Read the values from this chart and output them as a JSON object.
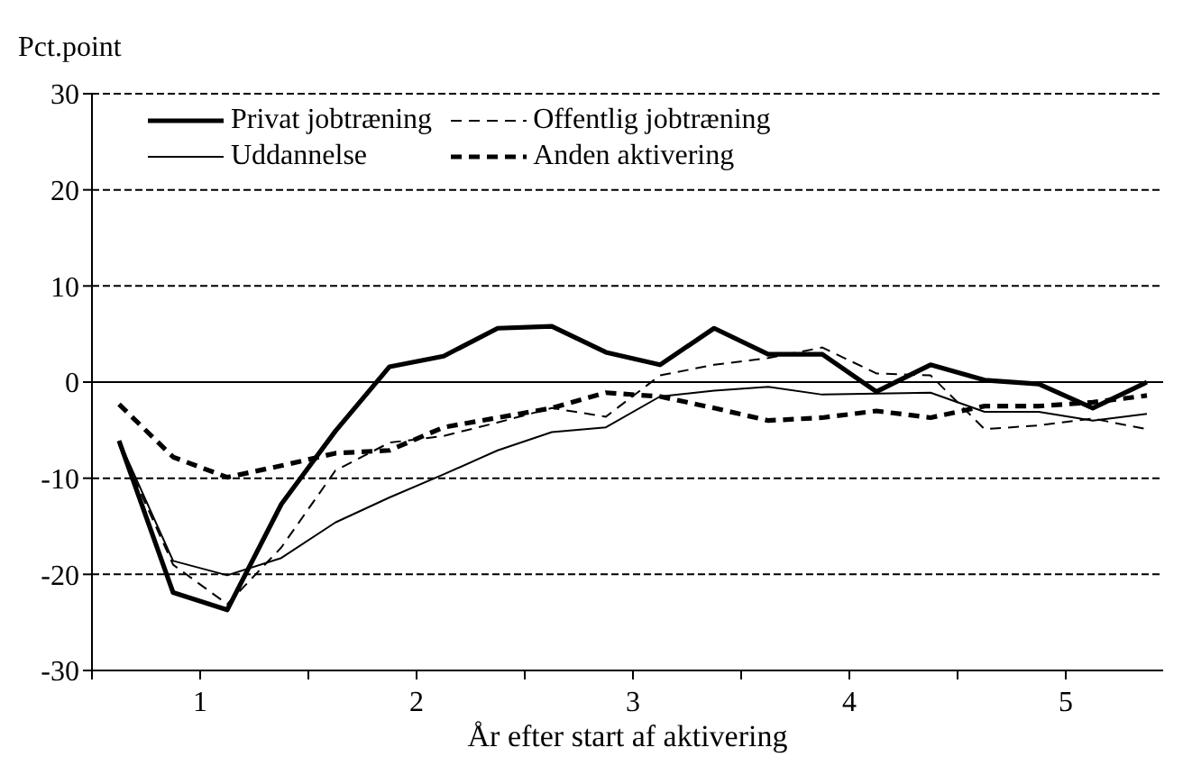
{
  "chart_data": {
    "type": "line",
    "ylabel": "Pct.point",
    "xlabel": "År efter start af aktivering",
    "x": [
      0.625,
      0.875,
      1.125,
      1.375,
      1.625,
      1.875,
      2.125,
      2.375,
      2.625,
      2.875,
      3.125,
      3.375,
      3.625,
      3.875,
      4.125,
      4.375,
      4.625,
      4.875,
      5.125,
      5.375
    ],
    "series": [
      {
        "name": "Privat jobtræning",
        "color": "#000000",
        "line_style": "solid",
        "values": [
          -6.1,
          -21.9,
          -23.7,
          -12.7,
          -5.1,
          1.6,
          2.7,
          5.6,
          5.8,
          3.1,
          1.8,
          5.6,
          2.9,
          2.9,
          -1.0,
          1.8,
          0.2,
          -0.2,
          -2.7,
          0.0
        ]
      },
      {
        "name": "Offentlig jobtræning",
        "color": "#000000",
        "line_style": "dashed",
        "values": [
          -6.5,
          -19.0,
          -23.1,
          -17.2,
          -9.2,
          -6.3,
          -5.6,
          -4.2,
          -2.7,
          -3.6,
          0.7,
          1.8,
          2.5,
          3.6,
          0.9,
          0.7,
          -4.9,
          -4.5,
          -3.8,
          -4.9
        ]
      },
      {
        "name": "Uddannelse",
        "color": "#000000",
        "line_style": "solid",
        "values": [
          -6.1,
          -18.6,
          -20.1,
          -18.3,
          -14.6,
          -12.0,
          -9.6,
          -7.1,
          -5.2,
          -4.7,
          -1.5,
          -0.9,
          -0.5,
          -1.3,
          -1.2,
          -1.1,
          -3.1,
          -3.1,
          -4.0,
          -3.3
        ]
      },
      {
        "name": "Anden aktivering",
        "color": "#000000",
        "line_style": "dashed",
        "values": [
          -2.3,
          -7.8,
          -9.9,
          -8.7,
          -7.4,
          -7.1,
          -4.7,
          -3.7,
          -2.7,
          -1.1,
          -1.5,
          -2.7,
          -4.0,
          -3.7,
          -3.0,
          -3.7,
          -2.5,
          -2.5,
          -2.1,
          -1.4
        ]
      }
    ],
    "xlim": [
      0.5,
      5.45
    ],
    "xticks": [
      {
        "value": 0.5,
        "label": null
      },
      1,
      {
        "value": 1.5,
        "label": null
      },
      2,
      {
        "value": 2.5,
        "label": null
      },
      3,
      {
        "value": 3.5,
        "label": null
      },
      4,
      {
        "value": 4.5,
        "label": null
      },
      5
    ],
    "ylim": [
      -30,
      30
    ],
    "yticks": [
      -30,
      -20,
      -10,
      0,
      10,
      20,
      30
    ],
    "grid": "y",
    "legend": "top left",
    "marker": "none",
    "ref_lines": [
      {
        "axis": "y",
        "value": 0,
        "label": null
      }
    ]
  }
}
